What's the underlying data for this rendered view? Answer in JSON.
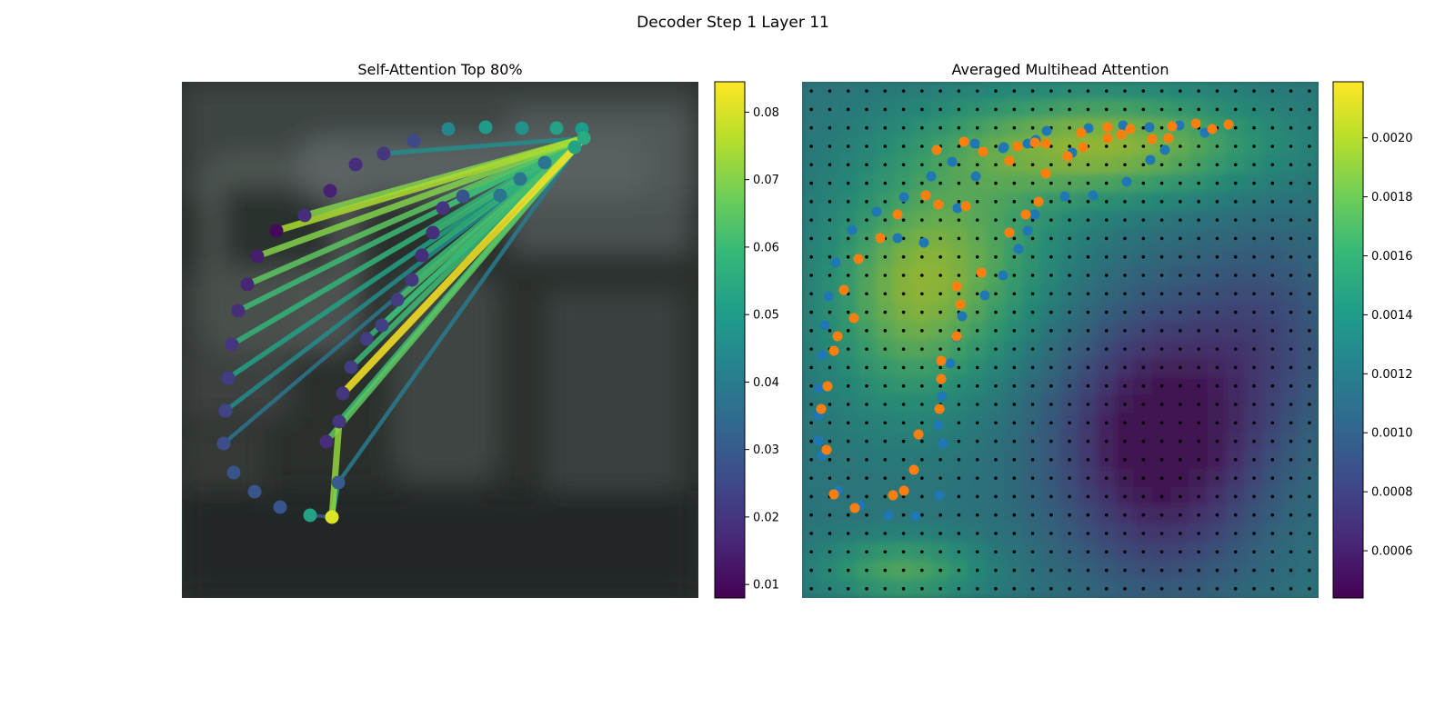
{
  "figure": {
    "title": "Decoder Step 1 Layer 11"
  },
  "colors": {
    "viridis": [
      "#440154",
      "#482878",
      "#3e4989",
      "#31688e",
      "#26828e",
      "#1f9e89",
      "#35b779",
      "#6ece58",
      "#b5de2b",
      "#fde725"
    ],
    "series_a": "#1f77b4",
    "series_b": "#ff7f0e",
    "grid_dot": "#000000"
  },
  "chart_data": [
    {
      "type": "scatter",
      "title": "Self-Attention Top 80%",
      "xlim": [
        0,
        568
      ],
      "ylim": [
        568,
        0
      ],
      "background": "blurred photo (dark, greyscale)",
      "colorbar": {
        "min": 0.008,
        "max": 0.0845,
        "ticks": [
          "0.01",
          "0.02",
          "0.03",
          "0.04",
          "0.05",
          "0.06",
          "0.07",
          "0.08"
        ],
        "tick_values": [
          0.01,
          0.02,
          0.03,
          0.04,
          0.05,
          0.06,
          0.07,
          0.08
        ]
      },
      "points": [
        {
          "x": 440,
          "y": 52,
          "v": 0.05
        },
        {
          "x": 412,
          "y": 51,
          "v": 0.052
        },
        {
          "x": 374,
          "y": 51,
          "v": 0.047
        },
        {
          "x": 334,
          "y": 50,
          "v": 0.05
        },
        {
          "x": 293,
          "y": 52,
          "v": 0.043
        },
        {
          "x": 255,
          "y": 65,
          "v": 0.025
        },
        {
          "x": 222,
          "y": 79,
          "v": 0.02
        },
        {
          "x": 191,
          "y": 91,
          "v": 0.018
        },
        {
          "x": 163,
          "y": 120,
          "v": 0.015
        },
        {
          "x": 135,
          "y": 147,
          "v": 0.018
        },
        {
          "x": 104,
          "y": 164,
          "v": 0.01
        },
        {
          "x": 83,
          "y": 192,
          "v": 0.014
        },
        {
          "x": 72,
          "y": 223,
          "v": 0.016
        },
        {
          "x": 62,
          "y": 252,
          "v": 0.018
        },
        {
          "x": 55,
          "y": 289,
          "v": 0.02
        },
        {
          "x": 51,
          "y": 326,
          "v": 0.022
        },
        {
          "x": 48,
          "y": 362,
          "v": 0.024
        },
        {
          "x": 46,
          "y": 398,
          "v": 0.026
        },
        {
          "x": 57,
          "y": 430,
          "v": 0.028
        },
        {
          "x": 80,
          "y": 451,
          "v": 0.028
        },
        {
          "x": 108,
          "y": 468,
          "v": 0.028
        },
        {
          "x": 141,
          "y": 477,
          "v": 0.052
        },
        {
          "x": 165,
          "y": 479,
          "v": 0.081
        },
        {
          "x": 172,
          "y": 441,
          "v": 0.03
        },
        {
          "x": 173,
          "y": 374,
          "v": 0.02
        },
        {
          "x": 159,
          "y": 396,
          "v": 0.018
        },
        {
          "x": 177,
          "y": 343,
          "v": 0.02
        },
        {
          "x": 186,
          "y": 314,
          "v": 0.022
        },
        {
          "x": 203,
          "y": 283,
          "v": 0.022
        },
        {
          "x": 220,
          "y": 268,
          "v": 0.023
        },
        {
          "x": 237,
          "y": 240,
          "v": 0.022
        },
        {
          "x": 253,
          "y": 218,
          "v": 0.02
        },
        {
          "x": 264,
          "y": 191,
          "v": 0.018
        },
        {
          "x": 276,
          "y": 166,
          "v": 0.018
        },
        {
          "x": 287,
          "y": 139,
          "v": 0.02
        },
        {
          "x": 309,
          "y": 126,
          "v": 0.028
        },
        {
          "x": 350,
          "y": 125,
          "v": 0.038
        },
        {
          "x": 372,
          "y": 107,
          "v": 0.038
        },
        {
          "x": 399,
          "y": 89,
          "v": 0.038
        },
        {
          "x": 432,
          "y": 72,
          "v": 0.052
        },
        {
          "x": 442,
          "y": 62,
          "v": 0.055
        }
      ],
      "lines": [
        {
          "from": 40,
          "to": 9,
          "v": 0.07
        },
        {
          "from": 40,
          "to": 10,
          "v": 0.075
        },
        {
          "from": 40,
          "to": 11,
          "v": 0.07
        },
        {
          "from": 40,
          "to": 12,
          "v": 0.065
        },
        {
          "from": 40,
          "to": 13,
          "v": 0.06
        },
        {
          "from": 40,
          "to": 14,
          "v": 0.058
        },
        {
          "from": 40,
          "to": 15,
          "v": 0.052
        },
        {
          "from": 40,
          "to": 16,
          "v": 0.045
        },
        {
          "from": 40,
          "to": 17,
          "v": 0.038
        },
        {
          "from": 40,
          "to": 26,
          "v": 0.084
        },
        {
          "from": 40,
          "to": 25,
          "v": 0.065
        },
        {
          "from": 40,
          "to": 24,
          "v": 0.06
        },
        {
          "from": 40,
          "to": 27,
          "v": 0.06
        },
        {
          "from": 40,
          "to": 28,
          "v": 0.058
        },
        {
          "from": 40,
          "to": 29,
          "v": 0.06
        },
        {
          "from": 40,
          "to": 30,
          "v": 0.062
        },
        {
          "from": 40,
          "to": 31,
          "v": 0.06
        },
        {
          "from": 40,
          "to": 32,
          "v": 0.058
        },
        {
          "from": 40,
          "to": 33,
          "v": 0.06
        },
        {
          "from": 40,
          "to": 34,
          "v": 0.06
        },
        {
          "from": 40,
          "to": 35,
          "v": 0.055
        },
        {
          "from": 40,
          "to": 36,
          "v": 0.05
        },
        {
          "from": 40,
          "to": 37,
          "v": 0.05
        },
        {
          "from": 40,
          "to": 23,
          "v": 0.04
        },
        {
          "from": 40,
          "to": 6,
          "v": 0.045
        },
        {
          "from": 22,
          "to": 24,
          "v": 0.072
        },
        {
          "from": 22,
          "to": 23,
          "v": 0.05
        },
        {
          "from": 22,
          "to": 21,
          "v": 0.03
        }
      ]
    },
    {
      "type": "heatmap",
      "title": "Averaged Multihead Attention",
      "xlim": [
        0,
        568
      ],
      "ylim": [
        568,
        0
      ],
      "grid": {
        "rows": 28,
        "cols": 28
      },
      "colorbar": {
        "min": 0.00044,
        "max": 0.00219,
        "ticks": [
          "0.0006",
          "0.0008",
          "0.0010",
          "0.0012",
          "0.0014",
          "0.0016",
          "0.0018",
          "0.0020"
        ],
        "tick_values": [
          0.0006,
          0.0008,
          0.001,
          0.0012,
          0.0014,
          0.0016,
          0.0018,
          0.002
        ]
      },
      "hotspots": [
        {
          "cx": 16,
          "cy": 3,
          "sx": 6,
          "sy": 2,
          "a": 0.00075
        },
        {
          "cx": 8,
          "cy": 9,
          "sx": 4,
          "sy": 4,
          "a": 0.0005
        },
        {
          "cx": 5,
          "cy": 12,
          "sx": 3,
          "sy": 4,
          "a": 0.0004
        },
        {
          "cx": 5,
          "cy": 26,
          "sx": 3,
          "sy": 1.2,
          "a": 0.0005
        },
        {
          "cx": 19,
          "cy": 19,
          "sx": 4,
          "sy": 5,
          "a": -0.0009
        },
        {
          "cx": 25,
          "cy": 13,
          "sx": 3,
          "sy": 4,
          "a": -0.0003
        }
      ],
      "base": 0.00122,
      "series": [
        {
          "color": "#1f77b4",
          "points": [
            [
              443,
              56
            ],
            [
              415,
              48
            ],
            [
              382,
              50
            ],
            [
              353,
              48
            ],
            [
              315,
              51
            ],
            [
              257,
              64
            ],
            [
              222,
              72
            ],
            [
              190,
              68
            ],
            [
              165,
              88
            ],
            [
              142,
              104
            ],
            [
              112,
              127
            ],
            [
              82,
              143
            ],
            [
              55,
              163
            ],
            [
              37,
              199
            ],
            [
              29,
              236
            ],
            [
              25,
              268
            ],
            [
              22,
              301
            ],
            [
              19,
              337
            ],
            [
              18,
              367
            ],
            [
              18,
              395
            ],
            [
              22,
              411
            ],
            [
              40,
              450
            ],
            [
              64,
              466
            ],
            [
              95,
              477
            ],
            [
              125,
              478
            ],
            [
              151,
              455
            ],
            [
              155,
              398
            ],
            [
              150,
              378
            ],
            [
              154,
              346
            ],
            [
              163,
              310
            ],
            [
              170,
              281
            ],
            [
              176,
              258
            ],
            [
              201,
              235
            ],
            [
              221,
              213
            ],
            [
              238,
              184
            ],
            [
              248,
              164
            ],
            [
              256,
              146
            ],
            [
              289,
              126
            ],
            [
              320,
              125
            ],
            [
              357,
              110
            ],
            [
              383,
              86
            ],
            [
              399,
              75
            ],
            [
              297,
              78
            ],
            [
              269,
              54
            ],
            [
              248,
              68
            ],
            [
              221,
              73
            ],
            [
              191,
              104
            ],
            [
              171,
              139
            ],
            [
              134,
              177
            ],
            [
              105,
              172
            ]
          ]
        },
        {
          "color": "#ff7f0e",
          "points": [
            [
              469,
              47
            ],
            [
              451,
              52
            ],
            [
              433,
              46
            ],
            [
              407,
              49
            ],
            [
              385,
              63
            ],
            [
              361,
              52
            ],
            [
              336,
              50
            ],
            [
              307,
              56
            ],
            [
              268,
              68
            ],
            [
              256,
              67
            ],
            [
              237,
              71
            ],
            [
              228,
              87
            ],
            [
              199,
              77
            ],
            [
              178,
              66
            ],
            [
              148,
              75
            ],
            [
              136,
              125
            ],
            [
              180,
              137
            ],
            [
              150,
              135
            ],
            [
              105,
              146
            ],
            [
              86,
              172
            ],
            [
              62,
              195
            ],
            [
              46,
              229
            ],
            [
              57,
              260
            ],
            [
              39,
              280
            ],
            [
              35,
              296
            ],
            [
              28,
              335
            ],
            [
              21,
              360
            ],
            [
              27,
              405
            ],
            [
              35,
              454
            ],
            [
              58,
              469
            ],
            [
              100,
              455
            ],
            [
              112,
              450
            ],
            [
              123,
              427
            ],
            [
              128,
              388
            ],
            [
              151,
              360
            ],
            [
              153,
              327
            ],
            [
              153,
              307
            ],
            [
              170,
              280
            ],
            [
              174,
              245
            ],
            [
              170,
              225
            ],
            [
              197,
              210
            ],
            [
              228,
              166
            ],
            [
              246,
              146
            ],
            [
              260,
              132
            ],
            [
              268,
              101
            ],
            [
              292,
              82
            ],
            [
              309,
              72
            ],
            [
              336,
              62
            ],
            [
              351,
              58
            ],
            [
              403,
              62
            ]
          ]
        }
      ]
    }
  ]
}
